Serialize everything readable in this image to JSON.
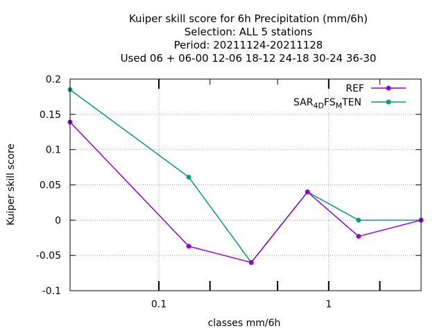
{
  "chart_data": {
    "type": "line",
    "title": [
      "Kuiper skill score  for 6h Precipitation (mm/6h)",
      "Selection: ALL      5 stations",
      "Period: 20211124-20211128",
      "Used  06  + 06-00 12-06 18-12 24-18 30-24 36-30"
    ],
    "xlabel": "classes mm/6h",
    "ylabel": "Kuiper skill score",
    "xscale": "log",
    "xlim": [
      0.03,
      3.5
    ],
    "ylim": [
      -0.1,
      0.2
    ],
    "x_ticks": [
      {
        "value": 0.1,
        "label": "0.1"
      },
      {
        "value": 1,
        "label": "1"
      }
    ],
    "x_minor_ticks": [
      0.2,
      0.5,
      2
    ],
    "y_ticks": [
      {
        "value": 0.2,
        "label": "0.2"
      },
      {
        "value": 0.15,
        "label": "0.15"
      },
      {
        "value": 0.1,
        "label": "0.1"
      },
      {
        "value": 0.05,
        "label": "0.05"
      },
      {
        "value": 0,
        "label": "0"
      },
      {
        "value": -0.05,
        "label": "-0.05"
      },
      {
        "value": -0.1,
        "label": "-0.1"
      }
    ],
    "grid": true,
    "legend_position": "top-right",
    "x": [
      0.03,
      0.15,
      0.35,
      0.75,
      1.5,
      3.5
    ],
    "series": [
      {
        "name": "REF",
        "color": "#9400d3",
        "values": [
          0.139,
          -0.037,
          -0.06,
          0.04,
          -0.023,
          0.0
        ]
      },
      {
        "name": "SAR_4D FS_M TEN",
        "label_parts": {
          "a": "SAR",
          "b": "4D",
          "c": "FS",
          "d": "M",
          "e": "TEN"
        },
        "color": "#009e73",
        "values": [
          0.185,
          0.061,
          -0.06,
          0.04,
          0.0,
          0.0
        ]
      }
    ]
  }
}
